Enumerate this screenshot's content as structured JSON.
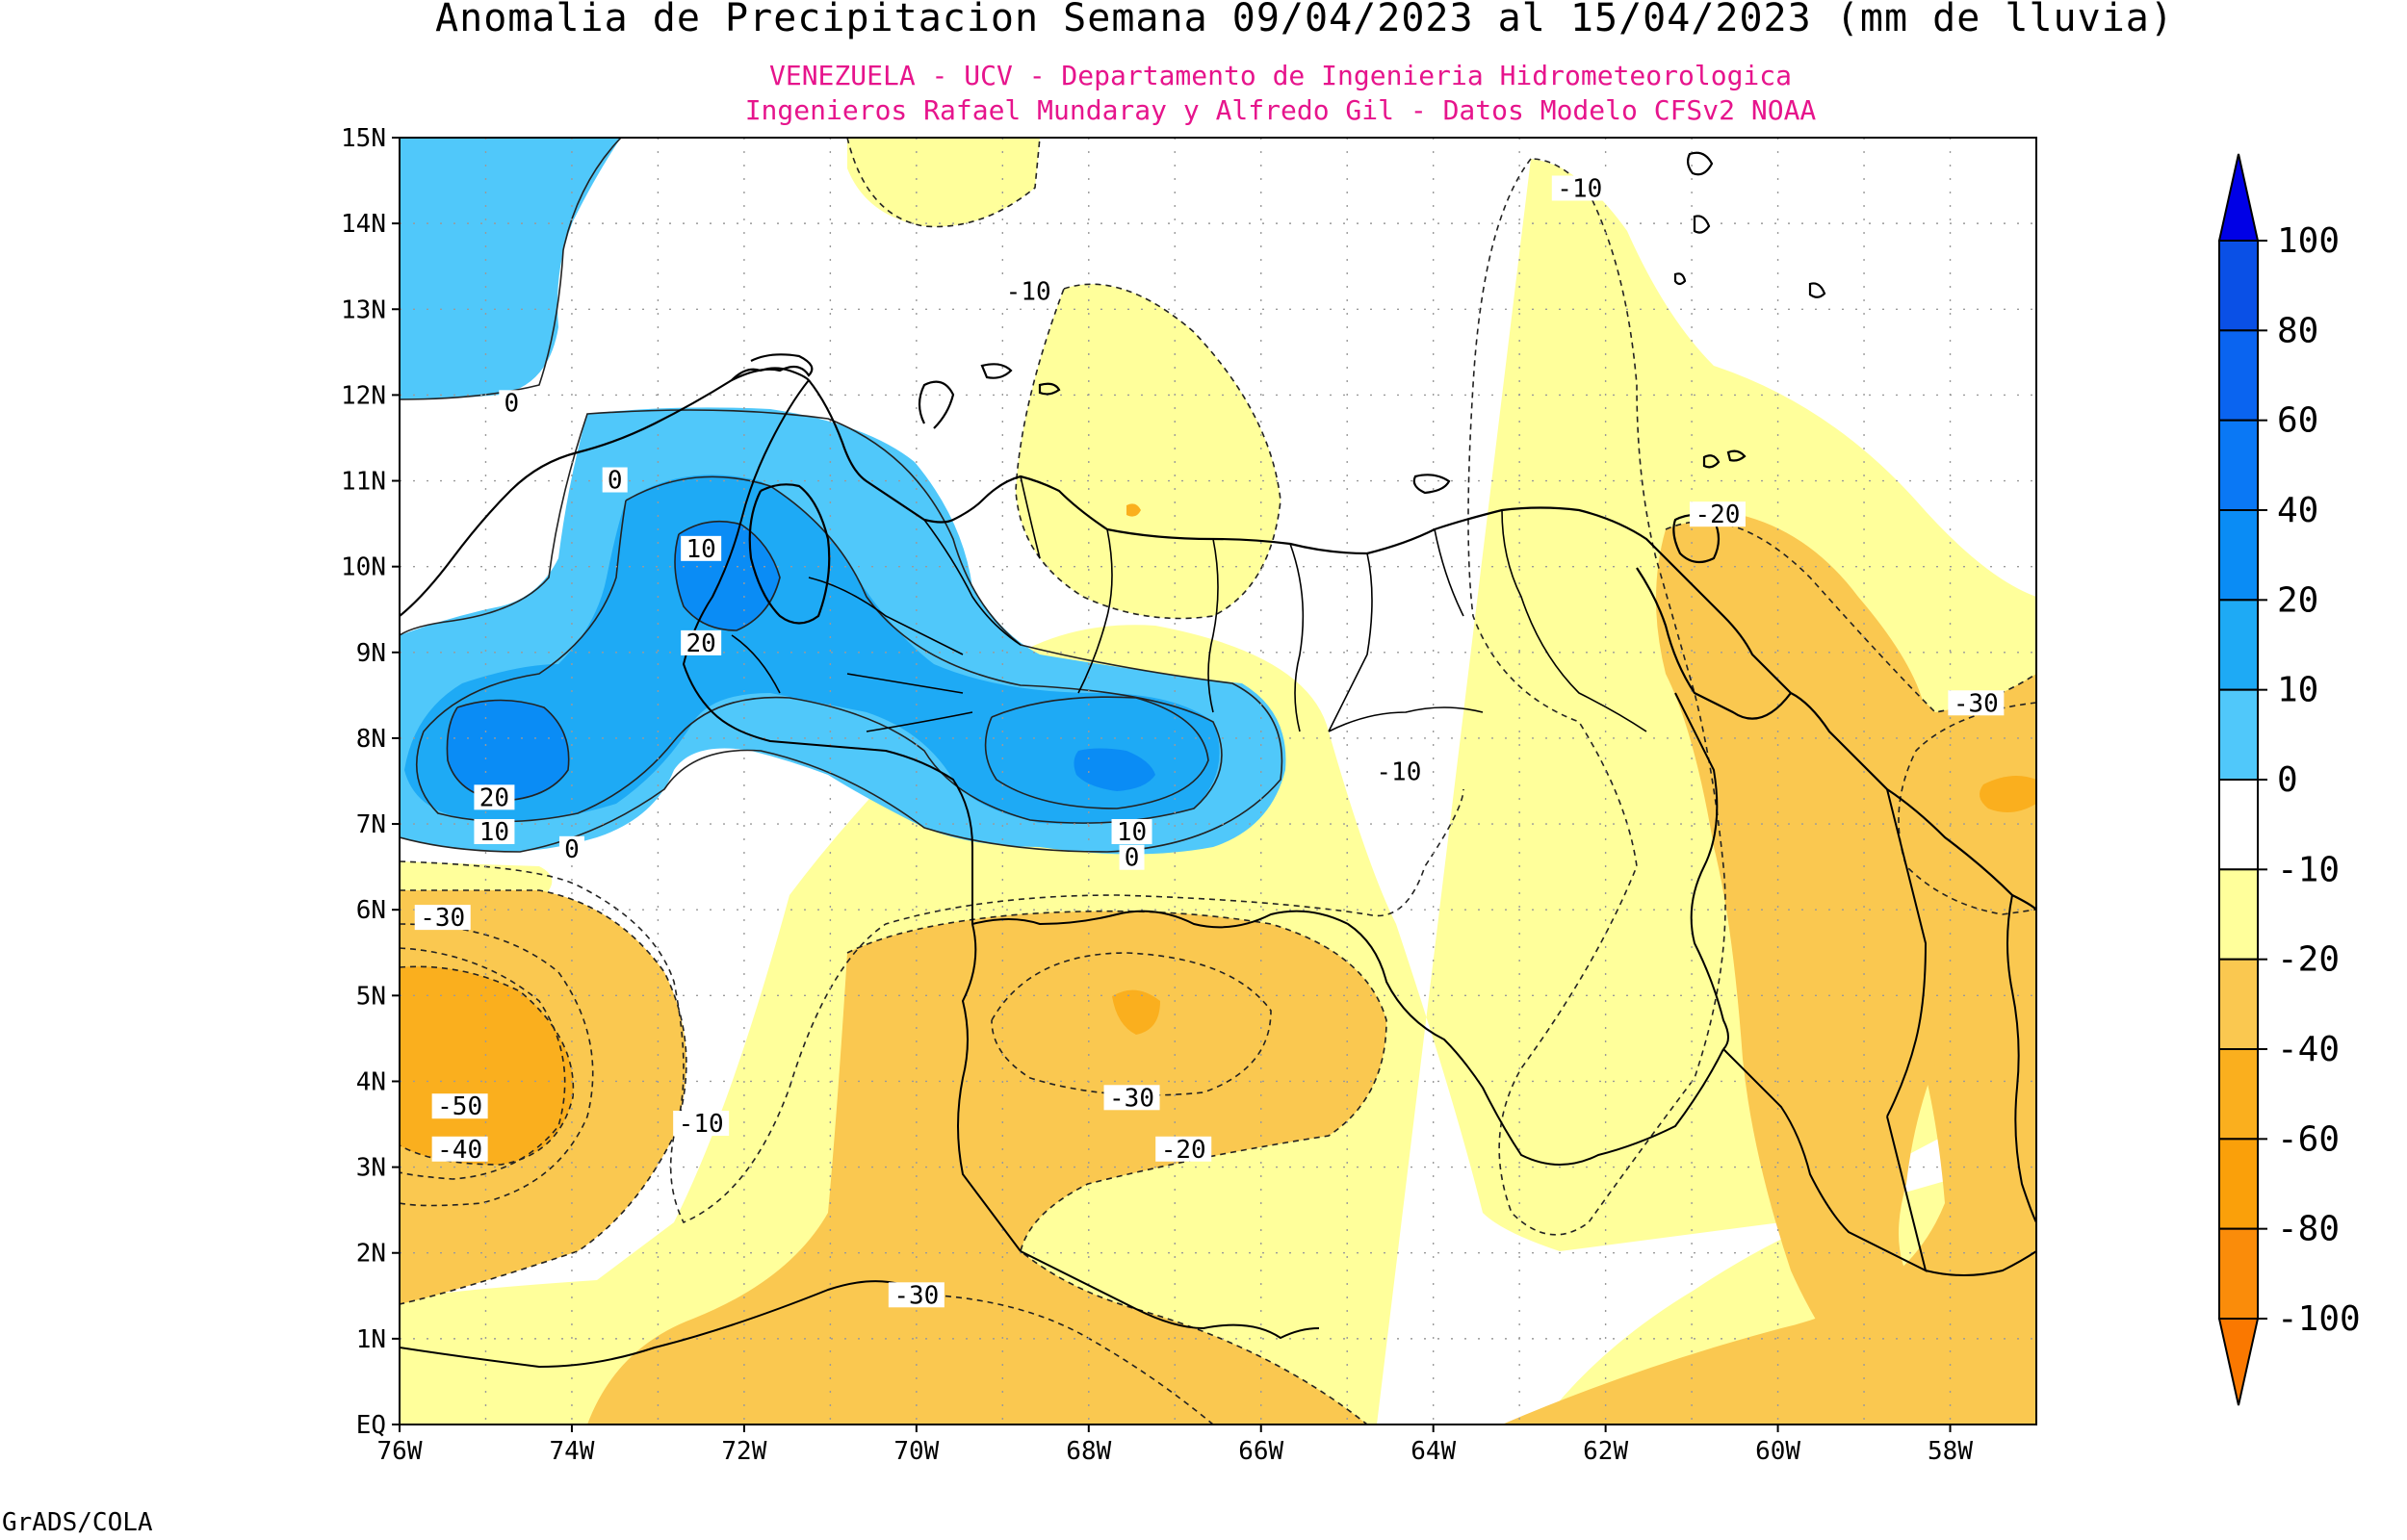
{
  "title": "Anomalia de Precipitacion Semana 09/04/2023 al 15/04/2023 (mm de lluvia)",
  "subtitle_1": "VENEZUELA - UCV - Departamento de Ingenieria Hidrometeorologica",
  "subtitle_2": "Ingenieros Rafael Mundaray y Alfredo Gil - Datos Modelo CFSv2 NOAA",
  "footer": "GrADS/COLA",
  "map": {
    "lon_min": -76,
    "lon_max": -57,
    "lat_min": 0,
    "lat_max": 15,
    "lon_ticks": [
      "76W",
      "74W",
      "72W",
      "70W",
      "68W",
      "66W",
      "64W",
      "62W",
      "60W",
      "58W"
    ],
    "lat_ticks": [
      "EQ",
      "1N",
      "2N",
      "3N",
      "4N",
      "5N",
      "6N",
      "7N",
      "8N",
      "9N",
      "10N",
      "11N",
      "12N",
      "13N",
      "14N",
      "15N"
    ],
    "grid": "dotted"
  },
  "colorbar": {
    "labels": [
      "100",
      "80",
      "60",
      "40",
      "20",
      "10",
      "0",
      "-10",
      "-20",
      "-40",
      "-60",
      "-80",
      "-100"
    ],
    "colors": [
      "#0000e6",
      "#0a50e6",
      "#0a64f0",
      "#0a78f5",
      "#0a8cf5",
      "#1eaaf5",
      "#50c8fa",
      "#ffffff",
      "#ffff9b",
      "#fac850",
      "#faaf1e",
      "#faa00a",
      "#fa8c0a",
      "#fa7800"
    ]
  },
  "contour_labels": [
    {
      "text": "0",
      "lon": -74.7,
      "lat": 11.9
    },
    {
      "text": "0",
      "lon": -73.5,
      "lat": 11.0
    },
    {
      "text": "10",
      "lon": -72.5,
      "lat": 10.2
    },
    {
      "text": "20",
      "lon": -72.5,
      "lat": 9.1
    },
    {
      "text": "20",
      "lon": -74.9,
      "lat": 7.3
    },
    {
      "text": "10",
      "lon": -74.9,
      "lat": 6.9
    },
    {
      "text": "0",
      "lon": -74.0,
      "lat": 6.7
    },
    {
      "text": "10",
      "lon": -67.5,
      "lat": 6.9
    },
    {
      "text": "0",
      "lon": -67.5,
      "lat": 6.6
    },
    {
      "text": "-10",
      "lon": -68.7,
      "lat": 13.2
    },
    {
      "text": "-10",
      "lon": -62.3,
      "lat": 14.4
    },
    {
      "text": "-20",
      "lon": -60.7,
      "lat": 10.6
    },
    {
      "text": "-30",
      "lon": -57.7,
      "lat": 8.4
    },
    {
      "text": "-10",
      "lon": -64.4,
      "lat": 7.6
    },
    {
      "text": "-30",
      "lon": -75.5,
      "lat": 5.9
    },
    {
      "text": "-50",
      "lon": -75.3,
      "lat": 3.7
    },
    {
      "text": "-40",
      "lon": -75.3,
      "lat": 3.2
    },
    {
      "text": "-10",
      "lon": -72.5,
      "lat": 3.5
    },
    {
      "text": "-30",
      "lon": -67.5,
      "lat": 3.8
    },
    {
      "text": "-20",
      "lon": -66.9,
      "lat": 3.2
    },
    {
      "text": "-30",
      "lon": -70.0,
      "lat": 1.5
    }
  ]
}
